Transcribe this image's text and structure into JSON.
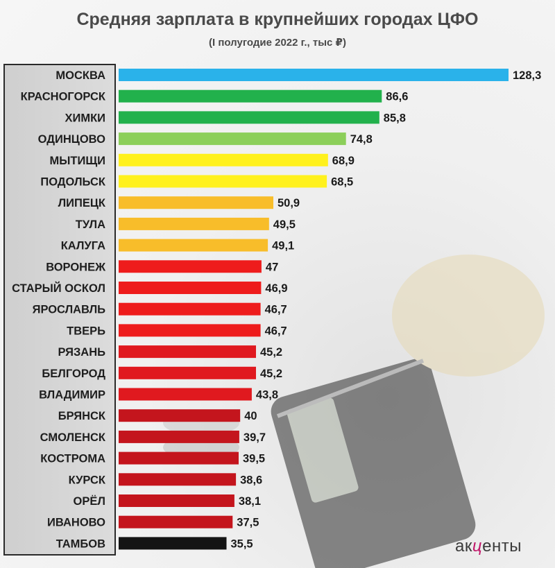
{
  "title": "Средняя зарплата в крупнейших городах ЦФО",
  "subtitle": "(I полугодие 2022 г., тыс ₽)",
  "logo": {
    "left": "ак",
    "mid": "ц",
    "right": "енты"
  },
  "chart_data": {
    "type": "bar",
    "orientation": "horizontal",
    "categories": [
      "МОСКВА",
      "КРАСНОГОРСК",
      "ХИМКИ",
      "ОДИНЦОВО",
      "МЫТИЩИ",
      "ПОДОЛЬСК",
      "ЛИПЕЦК",
      "ТУЛА",
      "КАЛУГА",
      "ВОРОНЕЖ",
      "СТАРЫЙ ОСКОЛ",
      "ЯРОСЛАВЛЬ",
      "ТВЕРЬ",
      "РЯЗАНЬ",
      "БЕЛГОРОД",
      "ВЛАДИМИР",
      "БРЯНСК",
      "СМОЛЕНСК",
      "КОСТРОМА",
      "КУРСК",
      "ОРЁЛ",
      "ИВАНОВО",
      "ТАМБОВ"
    ],
    "values": [
      128.3,
      86.6,
      85.8,
      74.8,
      68.9,
      68.5,
      50.9,
      49.5,
      49.1,
      47,
      46.9,
      46.7,
      46.7,
      45.2,
      45.2,
      43.8,
      40,
      39.7,
      39.5,
      38.6,
      38.1,
      37.5,
      35.5
    ],
    "value_labels": [
      "128,3",
      "86,6",
      "85,8",
      "74,8",
      "68,9",
      "68,5",
      "50,9",
      "49,5",
      "49,1",
      "47",
      "46,9",
      "46,7",
      "46,7",
      "45,2",
      "45,2",
      "43,8",
      "40",
      "39,7",
      "39,5",
      "38,6",
      "38,1",
      "37,5",
      "35,5"
    ],
    "colors": [
      "#2ab2ea",
      "#22b14c",
      "#22b14c",
      "#8ccf5a",
      "#fff11d",
      "#fff11d",
      "#f8bd2a",
      "#f8bd2a",
      "#f8bd2a",
      "#ee1c1c",
      "#ee1c1c",
      "#ee1c1c",
      "#ee1c1c",
      "#e0191f",
      "#e0191f",
      "#e0191f",
      "#c4151d",
      "#c4151d",
      "#c4151d",
      "#c4151d",
      "#c4151d",
      "#c4151d",
      "#141414"
    ],
    "title": "Средняя зарплата в крупнейших городах ЦФО",
    "subtitle": "(I полугодие 2022 г., тыс ₽)",
    "xlabel": "",
    "ylabel": "",
    "xlim": [
      0,
      128.3
    ],
    "grid": false,
    "legend": "none"
  }
}
